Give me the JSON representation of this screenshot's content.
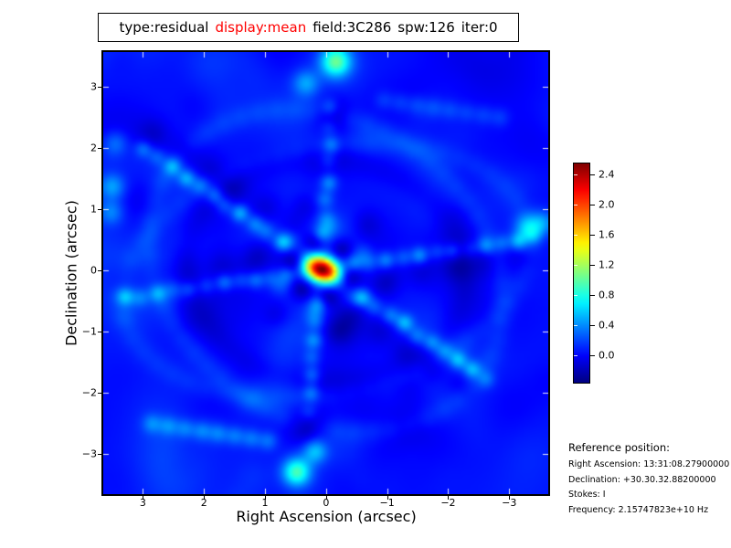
{
  "title": {
    "segments": [
      {
        "text": "type:residual",
        "color": "#000000"
      },
      {
        "text": "display:mean",
        "color": "#ff0000"
      },
      {
        "text": "field:3C286",
        "color": "#000000"
      },
      {
        "text": "spw:126",
        "color": "#000000"
      },
      {
        "text": "iter:0",
        "color": "#000000"
      }
    ]
  },
  "reference": {
    "heading": "Reference position:",
    "lines": [
      "Right Ascension: 13:31:08.27900000",
      "Declination: +30.30.32.88200000",
      "Stokes: I",
      "Frequency: 2.15747823e+10 Hz"
    ]
  },
  "chart_data": {
    "type": "heatmap",
    "title": "type:residual display:mean field:3C286 spw:126 iter:0",
    "xlabel": "Right Ascension (arcsec)",
    "ylabel": "Declination (arcsec)",
    "xlim": [
      3.65,
      -3.64
    ],
    "ylim": [
      -3.65,
      3.57
    ],
    "xtick_values": [
      3,
      2,
      1,
      0,
      -1,
      -2,
      -3
    ],
    "xtick_labels": [
      "3",
      "2",
      "1",
      "0",
      "−1",
      "−2",
      "−3"
    ],
    "ytick_values": [
      3,
      2,
      1,
      0,
      -1,
      -2,
      -3
    ],
    "ytick_labels": [
      "3",
      "2",
      "1",
      "0",
      "−1",
      "−2",
      "−3"
    ],
    "grid": false,
    "legend": null,
    "colormap": "jet",
    "vmin": -0.38,
    "vmax": 2.56,
    "colorbar": {
      "position": "right",
      "tick_values": [
        2.4,
        2.0,
        1.6,
        1.2,
        0.8,
        0.4,
        0.0
      ],
      "tick_labels": [
        "2.4",
        "2.0",
        "1.6",
        "1.2",
        "0.8",
        "0.4",
        "0.0"
      ]
    },
    "peak": {
      "x": 0.07,
      "y": 0.02,
      "value": 2.5
    },
    "field": {
      "base": 0.04,
      "center": {
        "x": 0.07,
        "y": 0.02,
        "amp": 2.5,
        "sigma_major": 0.21,
        "sigma_minor": 0.14,
        "rot_deg": 20
      },
      "rings": [
        {
          "r": 0.45,
          "count": 6,
          "phase_deg": 15,
          "amp": -0.32,
          "sigma": 0.13
        },
        {
          "r": 0.72,
          "count": 6,
          "phase_deg": 40,
          "amp": 0.2,
          "sigma": 0.12
        },
        {
          "r": 1.05,
          "count": 6,
          "phase_deg": 15,
          "amp": -0.14,
          "sigma": 0.16
        }
      ],
      "arms": [
        {
          "dx": 0.83,
          "dy": 0.56,
          "r0": 0.8,
          "r1": 3.7,
          "spacing": 0.27,
          "sigma": 0.1,
          "amps": [
            0.4,
            0.22,
            0.3,
            0.46,
            0.25,
            0.34,
            0.28,
            0.42
          ],
          "flank": {
            "offset": 0.3,
            "amp": -0.16,
            "sigma": 0.18
          }
        },
        {
          "dx": -0.83,
          "dy": -0.56,
          "r0": 0.8,
          "r1": 3.4,
          "spacing": 0.27,
          "sigma": 0.1,
          "amps": [
            0.4,
            0.22,
            0.3,
            0.46,
            0.25,
            0.34,
            0.28,
            0.42
          ],
          "flank": {
            "offset": 0.3,
            "amp": -0.16,
            "sigma": 0.18
          }
        },
        {
          "dx": -0.97,
          "dy": 0.145,
          "r0": 0.55,
          "r1": 3.55,
          "spacing": 0.27,
          "sigma": 0.1,
          "amps": [
            0.3,
            0.2,
            0.36,
            0.24,
            0.42,
            0.22
          ],
          "flank": {
            "offset": 0.28,
            "amp": -0.12,
            "sigma": 0.18
          }
        },
        {
          "dx": 0.97,
          "dy": -0.145,
          "r0": 0.55,
          "r1": 3.5,
          "spacing": 0.27,
          "sigma": 0.1,
          "amps": [
            0.26,
            0.18,
            0.32,
            0.22,
            0.36,
            0.2
          ],
          "flank": {
            "offset": 0.28,
            "amp": -0.12,
            "sigma": 0.18
          }
        },
        {
          "dx": -0.06,
          "dy": 1.0,
          "r0": 0.55,
          "r1": 2.75,
          "spacing": 0.3,
          "sigma": 0.1,
          "amps": [
            0.3,
            0.18,
            0.26,
            0.36,
            0.2
          ],
          "flank": null
        },
        {
          "dx": 0.1,
          "dy": -1.0,
          "r0": 0.55,
          "r1": 2.6,
          "spacing": 0.3,
          "sigma": 0.1,
          "amps": [
            0.28,
            0.2,
            0.34,
            0.22,
            0.3
          ],
          "flank": null
        }
      ],
      "spots": [
        {
          "x": -0.16,
          "y": 3.41,
          "amp": 0.92,
          "sigma": 0.17
        },
        {
          "x": 0.33,
          "y": 3.06,
          "amp": 0.4,
          "sigma": 0.15
        },
        {
          "x": -0.1,
          "y": 2.55,
          "amp": -0.3,
          "sigma": 0.2
        },
        {
          "x": 0.48,
          "y": -3.29,
          "amp": 0.88,
          "sigma": 0.16
        },
        {
          "x": 0.18,
          "y": -2.95,
          "amp": 0.5,
          "sigma": 0.14
        },
        {
          "x": 0.3,
          "y": -2.55,
          "amp": -0.3,
          "sigma": 0.2
        },
        {
          "x": 3.5,
          "y": 1.37,
          "amp": 0.42,
          "sigma": 0.15
        },
        {
          "x": 3.52,
          "y": 0.95,
          "amp": 0.32,
          "sigma": 0.14
        },
        {
          "x": 3.45,
          "y": 2.08,
          "amp": 0.28,
          "sigma": 0.14
        },
        {
          "x": -3.3,
          "y": 0.7,
          "amp": 0.48,
          "sigma": 0.15
        },
        {
          "x": -3.55,
          "y": 0.78,
          "amp": 0.38,
          "sigma": 0.14
        },
        {
          "x": -0.3,
          "y": -0.9,
          "amp": -0.18,
          "sigma": 0.25
        }
      ],
      "segments": [
        {
          "x1": 2.85,
          "y1": -2.5,
          "x2": 0.95,
          "y2": -2.78,
          "spacing": 0.27,
          "amp": 0.28,
          "sigma": 0.11
        },
        {
          "x1": -2.85,
          "y1": 2.5,
          "x2": -0.95,
          "y2": 2.78,
          "spacing": 0.27,
          "amp": 0.16,
          "sigma": 0.11
        }
      ],
      "arcs": [
        {
          "a": 3.05,
          "b": 2.45,
          "rot_deg": 32,
          "amp": 0.1,
          "sigma": 0.13,
          "spacing": 0.3
        },
        {
          "a": 3.4,
          "b": 2.0,
          "rot_deg": -12,
          "amp": 0.08,
          "sigma": 0.13,
          "spacing": 0.3
        },
        {
          "a": 2.3,
          "b": 1.85,
          "rot_deg": 8,
          "amp": -0.08,
          "sigma": 0.16,
          "spacing": 0.33
        }
      ],
      "noise": {
        "seed": 7,
        "count": 260,
        "amp": 0.07,
        "sigma_min": 0.15,
        "sigma_max": 0.5,
        "extent": 3.8
      }
    }
  }
}
